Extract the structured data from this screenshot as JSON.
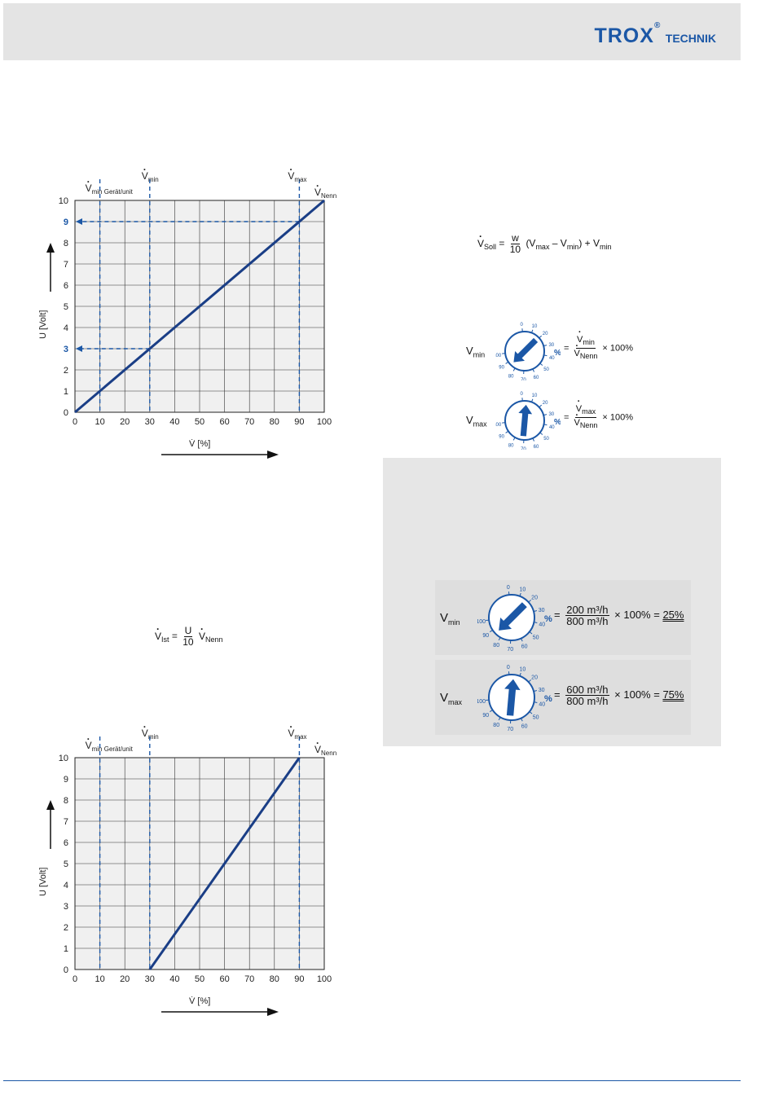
{
  "header": {
    "logo_brand": "TROX",
    "logo_reg": "®",
    "logo_sub": "TECHNIK"
  },
  "colors": {
    "accent": "#1b57a6",
    "header_bg": "#e4e4e4",
    "box_bg": "#e6e6e6",
    "grid": "#f0f0f0"
  },
  "charts": [
    {
      "ylabel": "U [Volt]",
      "xlabel": "V̇ [%]",
      "xticks": [
        "0",
        "10",
        "20",
        "30",
        "40",
        "50",
        "60",
        "70",
        "80",
        "90",
        "100"
      ],
      "yticks": [
        "0",
        "1",
        "2",
        "3",
        "4",
        "5",
        "6",
        "7",
        "8",
        "9",
        "10"
      ],
      "label_vmin_geraet": "min Gerät/unit",
      "label_vmin": "min",
      "label_vmax": "max",
      "label_vnenn": "Nenn",
      "label_v": "V"
    },
    {
      "ylabel": "U [Volt]",
      "xlabel": "V̇ [%]",
      "xticks": [
        "0",
        "10",
        "20",
        "30",
        "40",
        "50",
        "60",
        "70",
        "80",
        "90",
        "100"
      ],
      "yticks": [
        "0",
        "1",
        "2",
        "3",
        "4",
        "5",
        "6",
        "7",
        "8",
        "9",
        "10"
      ],
      "label_vmin_geraet": "min Gerät/unit",
      "label_vmin": "min",
      "label_vmax": "max",
      "label_vnenn": "Nenn",
      "label_v": "V"
    }
  ],
  "chart_data": [
    {
      "type": "line",
      "x": [
        0,
        100
      ],
      "y": [
        0,
        10
      ],
      "xlim": [
        0,
        100
      ],
      "ylim": [
        0,
        10
      ],
      "xlabel": "V̇ [%]",
      "ylabel": "U [Volt]",
      "vlines": [
        10,
        30,
        90
      ],
      "marked_y": [
        3,
        9
      ],
      "grid": true
    },
    {
      "type": "line",
      "x": [
        30,
        90
      ],
      "y": [
        0,
        10
      ],
      "xlim": [
        0,
        100
      ],
      "ylim": [
        0,
        10
      ],
      "xlabel": "V̇ [%]",
      "ylabel": "U [Volt]",
      "vlines": [
        10,
        30,
        90
      ],
      "grid": true
    }
  ],
  "formula_soll": {
    "lhs": "V",
    "lhs_sub": "Soll",
    "eq": "=",
    "num": "w",
    "den": "10",
    "mid_open": "(V",
    "mid_sub1": "max",
    "minus": " – V",
    "mid_sub2": "min",
    "close": ") + V",
    "end_sub": "min"
  },
  "formula_ist": {
    "lhs": "V",
    "lhs_sub": "Ist",
    "eq": "=",
    "num": "U",
    "den": "10",
    "rhs": "V",
    "rhs_sub": "Nenn"
  },
  "dials_small": [
    {
      "label": "V",
      "label_sub": "min",
      "eq": "=",
      "num": "V",
      "num_sub": "min",
      "den": "V",
      "den_sub": "Nenn",
      "tail": "× 100%",
      "pointer": "min"
    },
    {
      "label": "V",
      "label_sub": "max",
      "eq": "=",
      "num": "V",
      "num_sub": "max",
      "den": "V",
      "den_sub": "Nenn",
      "tail": "× 100%",
      "pointer": "max"
    }
  ],
  "dials_example": [
    {
      "label": "V",
      "label_sub": "min",
      "eq": "=",
      "num": "200 m³/h",
      "den": "800 m³/h",
      "tail": "× 100% =",
      "result": "25%"
    },
    {
      "label": "V",
      "label_sub": "max",
      "eq": "=",
      "num": "600 m³/h",
      "den": "800 m³/h",
      "tail": "× 100% =",
      "result": "75%"
    }
  ],
  "dial_scale": [
    "0",
    "10",
    "20",
    "30",
    "40",
    "50",
    "60",
    "70",
    "80",
    "90",
    "100"
  ],
  "dial_percent": "%"
}
